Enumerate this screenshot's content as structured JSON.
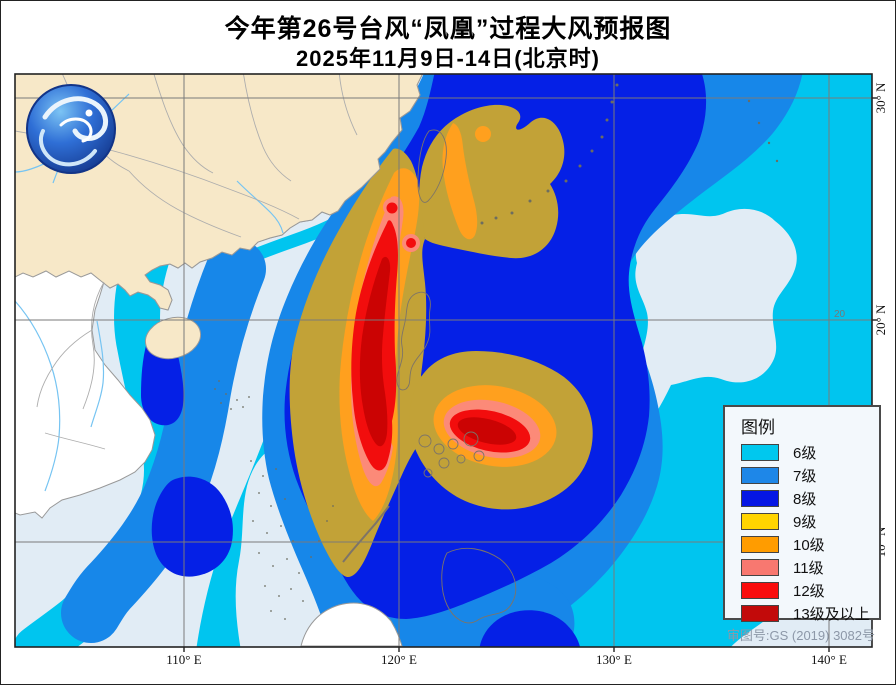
{
  "title": {
    "line1": "今年第26号台风“凤凰”过程大风预报图",
    "line2": "2025年11月9日-14日(北京时)"
  },
  "axis": {
    "lon": [
      {
        "text": "110° E"
      },
      {
        "text": "120° E"
      },
      {
        "text": "130° E"
      },
      {
        "text": "140° E"
      }
    ],
    "lat": [
      {
        "text": "30° N"
      },
      {
        "text": "20° N"
      },
      {
        "text": "10° N"
      }
    ],
    "inline_label": "20"
  },
  "legend": {
    "title": "图例",
    "items": [
      {
        "label": "6级",
        "color": "#00C8EE"
      },
      {
        "label": "7级",
        "color": "#1E87E8"
      },
      {
        "label": "8级",
        "color": "#0516E4"
      },
      {
        "label": "9级",
        "color": "#FFD400"
      },
      {
        "label": "10级",
        "color": "#FF9C00"
      },
      {
        "label": "11级",
        "color": "#F87870"
      },
      {
        "label": "12级",
        "color": "#F90D0D"
      },
      {
        "label": "13级及以上",
        "color": "#C20A0A"
      }
    ]
  },
  "map_colors": {
    "sea": "#E1ECF5",
    "land_china": "#F7E8C8",
    "land_other": "#FFFFFF",
    "coast": "#999999",
    "grid": "#7A7A7A",
    "river": "#76C4F2",
    "lv6": "#00C5EF",
    "lv7": "#1787E9",
    "lv8": "#0520E6",
    "lv9": "#C2A237",
    "lv10": "#FFA01E",
    "lv11": "#FC8A78",
    "lv12": "#F20D0D",
    "lv13": "#CB0303"
  },
  "footer": {
    "review_number": "审图号:GS (2019) 3082号"
  }
}
